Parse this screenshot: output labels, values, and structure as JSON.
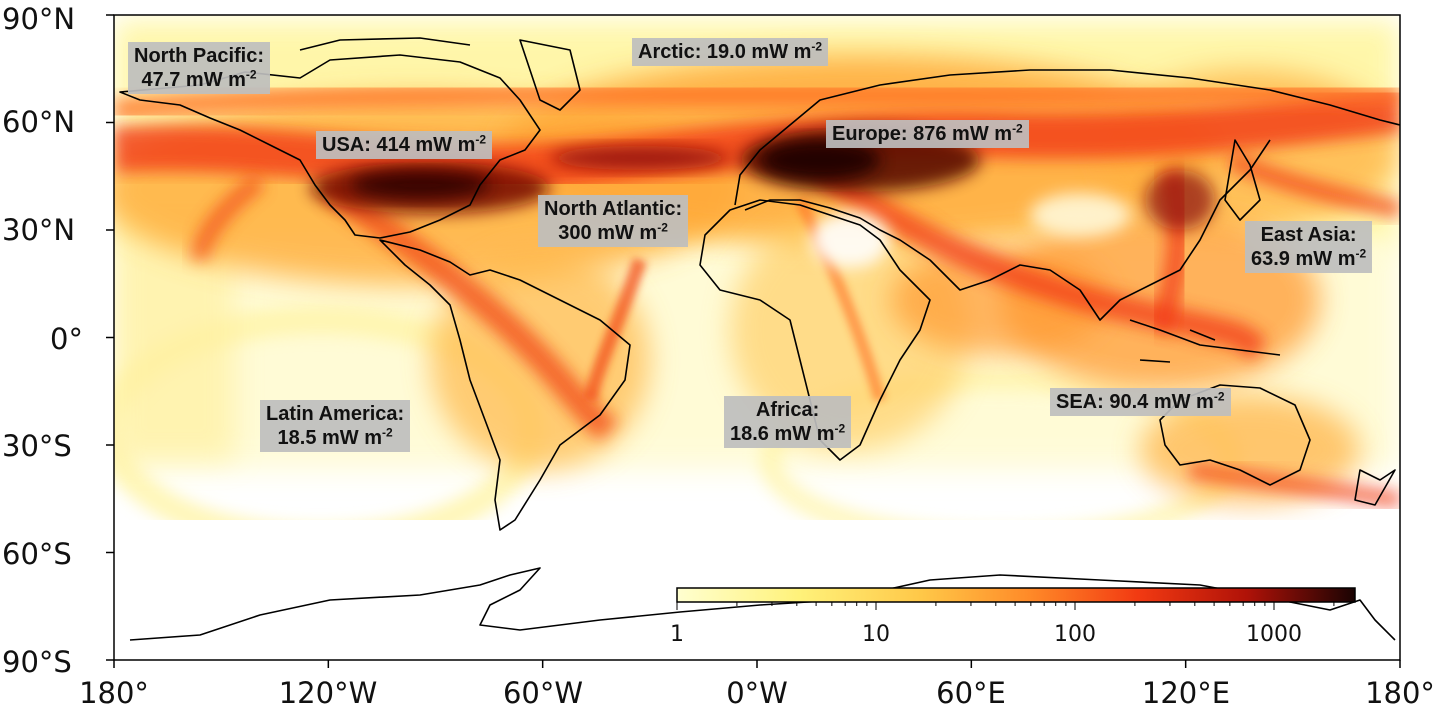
{
  "map": {
    "colors": {
      "ocean": "#ffffff",
      "land_outline": "#000000",
      "ramp": [
        "#ffffc0",
        "#fff07a",
        "#ffc040",
        "#ff7a20",
        "#f02e10",
        "#a81008",
        "#1e0404"
      ]
    },
    "y_ticks": [
      "90°N",
      "60°N",
      "30°N",
      "0°",
      "30°S",
      "60°S",
      "90°S"
    ],
    "x_ticks": [
      "180°",
      "120°W",
      "60°W",
      "0°W",
      "60°E",
      "120°E",
      "180°"
    ],
    "colorbar": {
      "scale": "log",
      "ticks": [
        "1",
        "10",
        "100",
        "1000"
      ]
    },
    "regions": [
      {
        "name": "North Pacific:",
        "value": "47.7 mW m",
        "exp": "-2"
      },
      {
        "name": "Arctic:",
        "value": "19.0 mW m",
        "exp": "-2"
      },
      {
        "name": "USA:",
        "value": "414 mW m",
        "exp": "-2"
      },
      {
        "name": "Europe:",
        "value": "876 mW m",
        "exp": "-2"
      },
      {
        "name": "North Atlantic:",
        "value": "300 mW m",
        "exp": "-2"
      },
      {
        "name": "East Asia:",
        "value": "63.9 mW m",
        "exp": "-2"
      },
      {
        "name": "Latin America:",
        "value": "18.5 mW m",
        "exp": "-2"
      },
      {
        "name": "Africa:",
        "value": "18.6 mW m",
        "exp": "-2"
      },
      {
        "name": "SEA:",
        "value": "90.4 mW m",
        "exp": "-2"
      }
    ]
  }
}
